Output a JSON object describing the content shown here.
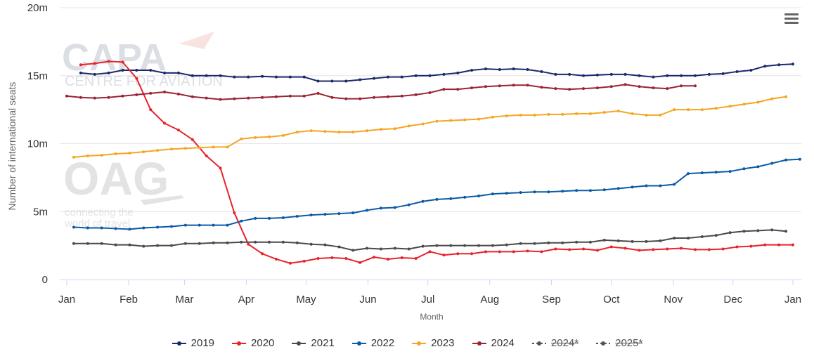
{
  "menu_icon": "hamburger-menu-icon",
  "watermarks": {
    "capa": {
      "line1": "CAPA",
      "line2": "CENTRE FOR AVIATION"
    },
    "oag": {
      "line1": "OAG",
      "line2": "connecting the",
      "line3": "world of travel"
    }
  },
  "chart_data": {
    "type": "line",
    "xlabel": "Month",
    "ylabel": "Number of international seats",
    "x_ticks": [
      "Jan",
      "Feb",
      "Mar",
      "Apr",
      "May",
      "Jun",
      "Jul",
      "Aug",
      "Sep",
      "Oct",
      "Nov",
      "Dec",
      "Jan"
    ],
    "x_range_weeks": [
      0,
      52
    ],
    "y_ticks": [
      "0",
      "5m",
      "10m",
      "15m",
      "20m"
    ],
    "ylim": [
      0,
      20
    ],
    "y_unit": "millions",
    "grid": "horizontal",
    "legend_position": "bottom-center",
    "series": [
      {
        "name": "2019",
        "color": "#1a2a6c",
        "start_week": 1,
        "values": [
          15.2,
          15.1,
          15.2,
          15.4,
          15.4,
          15.4,
          15.2,
          15.2,
          15.0,
          15.0,
          15.0,
          14.9,
          14.9,
          14.95,
          14.9,
          14.9,
          14.9,
          14.6,
          14.6,
          14.6,
          14.7,
          14.8,
          14.9,
          14.9,
          15.0,
          15.0,
          15.1,
          15.2,
          15.4,
          15.5,
          15.45,
          15.5,
          15.45,
          15.3,
          15.1,
          15.1,
          15.0,
          15.05,
          15.1,
          15.1,
          15.0,
          14.9,
          15.0,
          15.0,
          15.0,
          15.1,
          15.15,
          15.3,
          15.4,
          15.7,
          15.8,
          15.85
        ]
      },
      {
        "name": "2020",
        "color": "#e8232a",
        "start_week": 1,
        "values": [
          15.8,
          15.9,
          16.05,
          16.0,
          14.8,
          12.5,
          11.5,
          11.0,
          10.3,
          9.1,
          8.2,
          4.9,
          2.6,
          1.9,
          1.5,
          1.2,
          1.35,
          1.55,
          1.6,
          1.55,
          1.25,
          1.65,
          1.5,
          1.6,
          1.55,
          2.05,
          1.8,
          1.9,
          1.9,
          2.05,
          2.05,
          2.05,
          2.1,
          2.05,
          2.25,
          2.2,
          2.25,
          2.15,
          2.4,
          2.3,
          2.15,
          2.2,
          2.25,
          2.3,
          2.2,
          2.2,
          2.25,
          2.4,
          2.45,
          2.55,
          2.55,
          2.55
        ]
      },
      {
        "name": "2021",
        "color": "#4a4a4a",
        "start_week": 0.5,
        "values": [
          2.65,
          2.65,
          2.65,
          2.55,
          2.55,
          2.45,
          2.5,
          2.5,
          2.65,
          2.65,
          2.7,
          2.7,
          2.75,
          2.75,
          2.75,
          2.75,
          2.7,
          2.6,
          2.55,
          2.4,
          2.15,
          2.3,
          2.25,
          2.3,
          2.25,
          2.45,
          2.5,
          2.5,
          2.5,
          2.5,
          2.5,
          2.55,
          2.65,
          2.65,
          2.7,
          2.7,
          2.75,
          2.75,
          2.9,
          2.85,
          2.8,
          2.8,
          2.85,
          3.05,
          3.05,
          3.15,
          3.25,
          3.45,
          3.55,
          3.6,
          3.65,
          3.55
        ]
      },
      {
        "name": "2022",
        "color": "#0b5aa5",
        "start_week": 0.5,
        "values": [
          3.85,
          3.8,
          3.8,
          3.75,
          3.7,
          3.8,
          3.85,
          3.9,
          4.0,
          4.0,
          4.0,
          4.0,
          4.3,
          4.5,
          4.5,
          4.55,
          4.65,
          4.75,
          4.8,
          4.85,
          4.9,
          5.1,
          5.25,
          5.3,
          5.5,
          5.75,
          5.9,
          5.95,
          6.05,
          6.15,
          6.3,
          6.35,
          6.4,
          6.45,
          6.45,
          6.5,
          6.55,
          6.55,
          6.6,
          6.7,
          6.8,
          6.9,
          6.9,
          7.0,
          7.8,
          7.85,
          7.9,
          7.95,
          8.15,
          8.3,
          8.55,
          8.8,
          8.85
        ]
      },
      {
        "name": "2023",
        "color": "#f5a623",
        "start_week": 0.5,
        "values": [
          9.0,
          9.1,
          9.15,
          9.25,
          9.3,
          9.4,
          9.5,
          9.6,
          9.65,
          9.7,
          9.75,
          9.75,
          10.35,
          10.45,
          10.5,
          10.6,
          10.85,
          10.95,
          10.9,
          10.85,
          10.85,
          10.95,
          11.05,
          11.1,
          11.3,
          11.45,
          11.65,
          11.7,
          11.75,
          11.8,
          11.95,
          12.05,
          12.1,
          12.1,
          12.15,
          12.15,
          12.2,
          12.2,
          12.3,
          12.4,
          12.2,
          12.1,
          12.1,
          12.5,
          12.5,
          12.5,
          12.6,
          12.75,
          12.9,
          13.05,
          13.3,
          13.45
        ]
      },
      {
        "name": "2024",
        "color": "#9b2335",
        "start_week": 0,
        "values": [
          13.5,
          13.4,
          13.35,
          13.4,
          13.5,
          13.6,
          13.7,
          13.8,
          13.65,
          13.45,
          13.35,
          13.25,
          13.3,
          13.35,
          13.4,
          13.45,
          13.5,
          13.5,
          13.7,
          13.4,
          13.3,
          13.3,
          13.4,
          13.45,
          13.5,
          13.6,
          13.75,
          14.0,
          14.0,
          14.1,
          14.2,
          14.25,
          14.3,
          14.3,
          14.15,
          14.05,
          14.0,
          14.05,
          14.1,
          14.2,
          14.35,
          14.2,
          14.1,
          14.05,
          14.25,
          14.25
        ]
      },
      {
        "name": "2024*",
        "color": "#555555",
        "dashed": true,
        "hidden": true,
        "values": []
      },
      {
        "name": "2025*",
        "color": "#555555",
        "dashed": true,
        "hidden": true,
        "values": []
      }
    ]
  }
}
